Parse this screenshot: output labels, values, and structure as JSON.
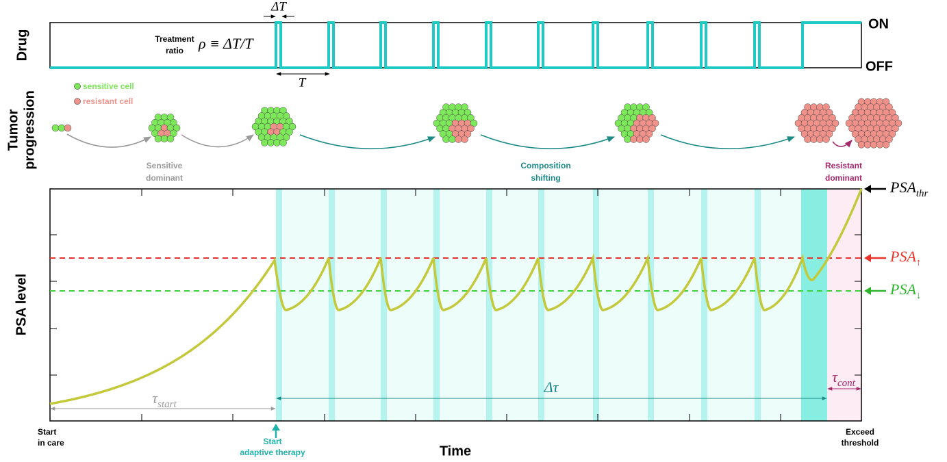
{
  "drug": {
    "axis_label": "Drug",
    "on": "ON",
    "off": "OFF",
    "delta_t": "ΔT",
    "treatment_ratio": [
      "Treatment",
      "ratio"
    ],
    "formula": "ρ ≡ ΔT/T",
    "period": "T"
  },
  "tumor": {
    "axis_label": [
      "Tumor",
      "progression"
    ],
    "legend": [
      "sensitive cell",
      "resistant cell"
    ],
    "stages": [
      [
        "Sensitive",
        "dominant"
      ],
      [
        "Composition",
        "shifting"
      ],
      [
        "Resistant",
        "dominant"
      ]
    ]
  },
  "psa": {
    "axis_label": "PSA level",
    "thresholds": [
      {
        "main": "PSA",
        "sub": "thr"
      },
      {
        "main": "PSA",
        "sub": "↑"
      },
      {
        "main": "PSA",
        "sub": "↓"
      }
    ],
    "intervals": [
      {
        "main": "τ",
        "sub": "start"
      },
      {
        "main": "Δτ",
        "sub": ""
      },
      {
        "main": "τ",
        "sub": "cont"
      }
    ]
  },
  "time": {
    "axis_label": "Time",
    "events": [
      [
        "Start",
        "in care"
      ],
      [
        "Start",
        "adaptive therapy"
      ],
      [
        "Exceed",
        "threshold"
      ]
    ]
  }
}
